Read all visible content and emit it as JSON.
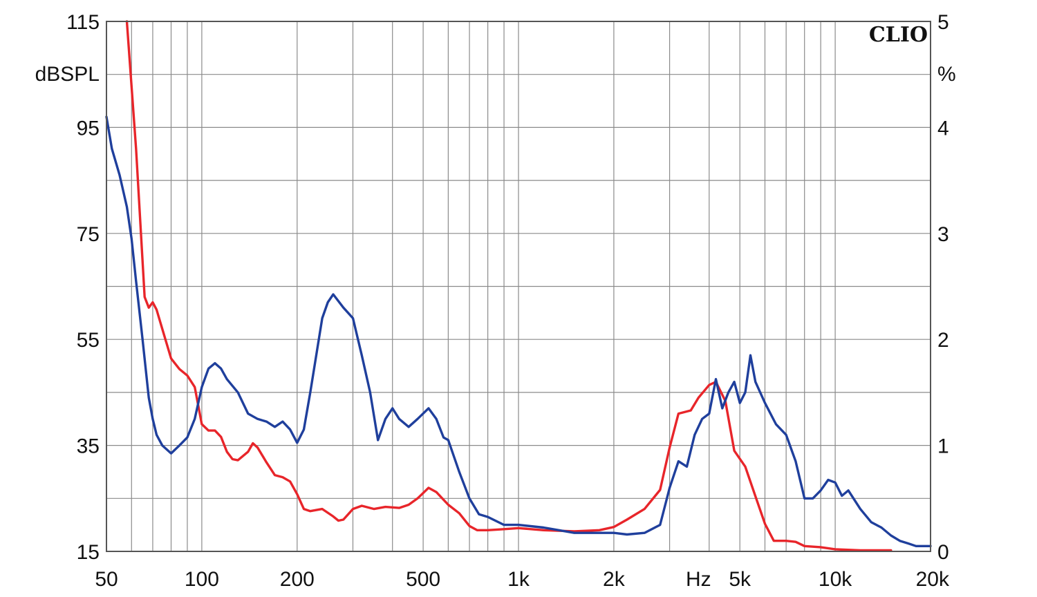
{
  "chart_data": {
    "type": "line",
    "title": "",
    "brand": "CLIO",
    "x_scale": "log",
    "xlim": [
      50,
      20000
    ],
    "x_ticks": [
      50,
      100,
      200,
      500,
      1000,
      2000,
      5000,
      10000,
      20000
    ],
    "x_tick_labels": [
      "50",
      "100",
      "200",
      "500",
      "1k",
      "2k",
      "5k",
      "10k",
      "20k"
    ],
    "x_unit_label": "Hz",
    "x_unit_label_at": 3700,
    "x_minor_grid": [
      60,
      70,
      80,
      90,
      300,
      400,
      600,
      700,
      800,
      900,
      3000,
      4000,
      6000,
      7000,
      8000,
      9000
    ],
    "y_left": {
      "label": "dBSPL",
      "ylim": [
        15,
        115
      ],
      "ticks": [
        15,
        35,
        55,
        75,
        95,
        115
      ],
      "tick_labels": [
        "15",
        "35",
        "55",
        "75",
        "95",
        "115"
      ]
    },
    "y_right": {
      "label": "%",
      "ylim": [
        0,
        5
      ],
      "ticks": [
        0,
        1,
        2,
        3,
        4,
        5
      ],
      "tick_labels": [
        "0",
        "1",
        "2",
        "3",
        "4",
        "5"
      ]
    },
    "grid": true,
    "minor_y_step": 10,
    "series": [
      {
        "color": "#e8252a",
        "axis": "right",
        "points": [
          [
            58,
            5.0
          ],
          [
            62,
            3.8
          ],
          [
            66,
            2.4
          ],
          [
            68,
            2.3
          ],
          [
            70,
            2.35
          ],
          [
            72,
            2.28
          ],
          [
            75,
            2.1
          ],
          [
            80,
            1.82
          ],
          [
            85,
            1.72
          ],
          [
            90,
            1.66
          ],
          [
            95,
            1.55
          ],
          [
            100,
            1.2
          ],
          [
            105,
            1.14
          ],
          [
            110,
            1.14
          ],
          [
            115,
            1.08
          ],
          [
            120,
            0.94
          ],
          [
            125,
            0.87
          ],
          [
            130,
            0.86
          ],
          [
            140,
            0.94
          ],
          [
            145,
            1.02
          ],
          [
            150,
            0.98
          ],
          [
            160,
            0.84
          ],
          [
            170,
            0.72
          ],
          [
            180,
            0.7
          ],
          [
            190,
            0.66
          ],
          [
            200,
            0.54
          ],
          [
            210,
            0.4
          ],
          [
            220,
            0.38
          ],
          [
            240,
            0.4
          ],
          [
            260,
            0.33
          ],
          [
            270,
            0.29
          ],
          [
            280,
            0.3
          ],
          [
            300,
            0.4
          ],
          [
            320,
            0.43
          ],
          [
            350,
            0.4
          ],
          [
            380,
            0.42
          ],
          [
            420,
            0.41
          ],
          [
            450,
            0.44
          ],
          [
            480,
            0.5
          ],
          [
            520,
            0.6
          ],
          [
            550,
            0.56
          ],
          [
            600,
            0.44
          ],
          [
            650,
            0.36
          ],
          [
            700,
            0.24
          ],
          [
            740,
            0.2
          ],
          [
            800,
            0.2
          ],
          [
            900,
            0.21
          ],
          [
            1000,
            0.22
          ],
          [
            1200,
            0.2
          ],
          [
            1500,
            0.19
          ],
          [
            1800,
            0.2
          ],
          [
            2000,
            0.23
          ],
          [
            2200,
            0.3
          ],
          [
            2500,
            0.4
          ],
          [
            2800,
            0.58
          ],
          [
            3000,
            0.98
          ],
          [
            3200,
            1.3
          ],
          [
            3500,
            1.33
          ],
          [
            3700,
            1.45
          ],
          [
            4000,
            1.57
          ],
          [
            4200,
            1.6
          ],
          [
            4500,
            1.42
          ],
          [
            4800,
            0.95
          ],
          [
            5200,
            0.8
          ],
          [
            5600,
            0.52
          ],
          [
            6000,
            0.26
          ],
          [
            6400,
            0.1
          ],
          [
            7000,
            0.1
          ],
          [
            7500,
            0.09
          ],
          [
            8000,
            0.05
          ],
          [
            9000,
            0.04
          ],
          [
            10000,
            0.02
          ],
          [
            12000,
            0.01
          ],
          [
            14000,
            0.01
          ],
          [
            15000,
            0.01
          ]
        ]
      },
      {
        "color": "#1f3f9c",
        "axis": "left",
        "points": [
          [
            50,
            97
          ],
          [
            52,
            91
          ],
          [
            55,
            86
          ],
          [
            58,
            80
          ],
          [
            60,
            74
          ],
          [
            62,
            66
          ],
          [
            65,
            55
          ],
          [
            68,
            44
          ],
          [
            70,
            40
          ],
          [
            72,
            37
          ],
          [
            75,
            35
          ],
          [
            80,
            33.5
          ],
          [
            85,
            35
          ],
          [
            90,
            36.5
          ],
          [
            95,
            40
          ],
          [
            100,
            46
          ],
          [
            105,
            49.5
          ],
          [
            110,
            50.5
          ],
          [
            115,
            49.5
          ],
          [
            120,
            47.5
          ],
          [
            130,
            45
          ],
          [
            140,
            41
          ],
          [
            150,
            40
          ],
          [
            160,
            39.5
          ],
          [
            170,
            38.5
          ],
          [
            180,
            39.5
          ],
          [
            190,
            38
          ],
          [
            200,
            35.5
          ],
          [
            210,
            38
          ],
          [
            220,
            45
          ],
          [
            240,
            59
          ],
          [
            250,
            62
          ],
          [
            260,
            63.5
          ],
          [
            280,
            61
          ],
          [
            300,
            59
          ],
          [
            320,
            52
          ],
          [
            340,
            45
          ],
          [
            360,
            36
          ],
          [
            380,
            40
          ],
          [
            400,
            42
          ],
          [
            420,
            40
          ],
          [
            450,
            38.5
          ],
          [
            480,
            40
          ],
          [
            520,
            42
          ],
          [
            550,
            40
          ],
          [
            580,
            36.5
          ],
          [
            600,
            36
          ],
          [
            650,
            30
          ],
          [
            700,
            25
          ],
          [
            750,
            22
          ],
          [
            800,
            21.5
          ],
          [
            900,
            20
          ],
          [
            1000,
            20
          ],
          [
            1200,
            19.5
          ],
          [
            1500,
            18.5
          ],
          [
            1800,
            18.5
          ],
          [
            2000,
            18.5
          ],
          [
            2200,
            18.2
          ],
          [
            2500,
            18.5
          ],
          [
            2800,
            20
          ],
          [
            3000,
            27
          ],
          [
            3200,
            32
          ],
          [
            3400,
            31
          ],
          [
            3600,
            37
          ],
          [
            3800,
            40
          ],
          [
            4000,
            41
          ],
          [
            4200,
            47.5
          ],
          [
            4400,
            42
          ],
          [
            4600,
            45
          ],
          [
            4800,
            47
          ],
          [
            5000,
            43
          ],
          [
            5200,
            45
          ],
          [
            5400,
            52
          ],
          [
            5600,
            47
          ],
          [
            6000,
            43
          ],
          [
            6500,
            39
          ],
          [
            7000,
            37
          ],
          [
            7500,
            32
          ],
          [
            8000,
            25
          ],
          [
            8500,
            25
          ],
          [
            9000,
            26.5
          ],
          [
            9500,
            28.5
          ],
          [
            10000,
            28
          ],
          [
            10500,
            25.5
          ],
          [
            11000,
            26.5
          ],
          [
            12000,
            23
          ],
          [
            13000,
            20.5
          ],
          [
            14000,
            19.5
          ],
          [
            15000,
            18
          ],
          [
            16000,
            17
          ],
          [
            17000,
            16.5
          ],
          [
            18000,
            16
          ],
          [
            20000,
            16
          ]
        ]
      }
    ]
  }
}
